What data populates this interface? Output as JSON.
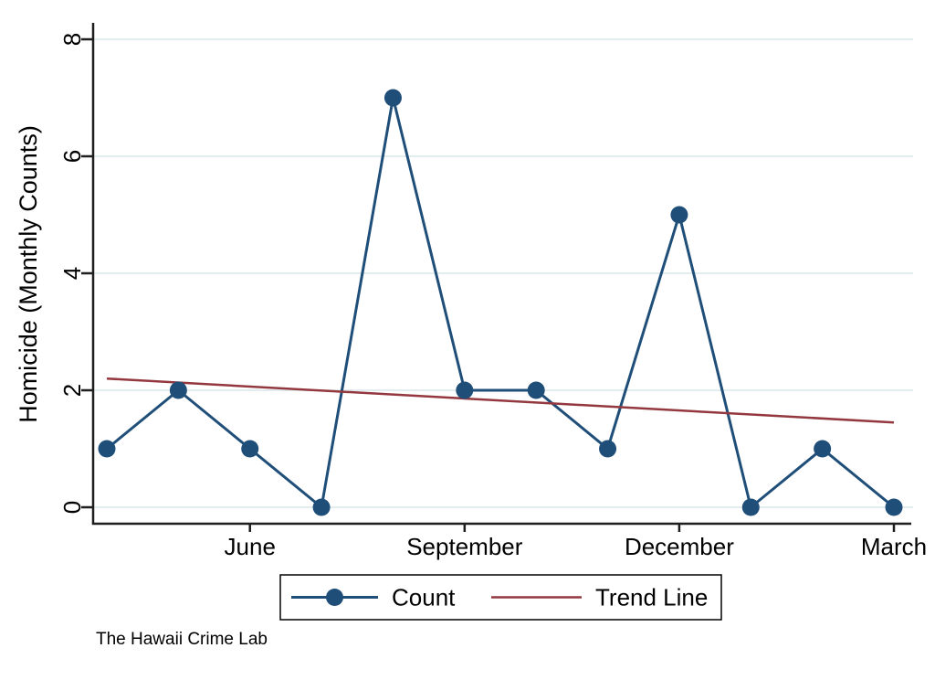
{
  "caption": "The Hawaii Crime Lab",
  "chart_data": {
    "type": "line",
    "title": "",
    "xlabel": "",
    "ylabel": "Homicide (Monthly Counts)",
    "y_ticks": [
      0,
      2,
      4,
      6,
      8
    ],
    "ylim": [
      0,
      8.3
    ],
    "x_point_count": 12,
    "x_tick_positions": [
      3,
      6,
      9,
      12
    ],
    "x_tick_labels": [
      "June",
      "September",
      "December",
      "March"
    ],
    "grid": true,
    "gridline_color": "#e3edf0",
    "axis_color": "#1e1e1e",
    "legend_position": "bottom-center",
    "series": [
      {
        "name": "Count",
        "style": "line-with-markers",
        "color": "#1f4e79",
        "values": [
          1,
          2,
          1,
          0,
          7,
          2,
          2,
          1,
          5,
          0,
          1,
          0
        ]
      },
      {
        "name": "Trend Line",
        "style": "line",
        "color": "#94383f",
        "trend_start": 2.2,
        "trend_end": 1.45
      }
    ]
  }
}
